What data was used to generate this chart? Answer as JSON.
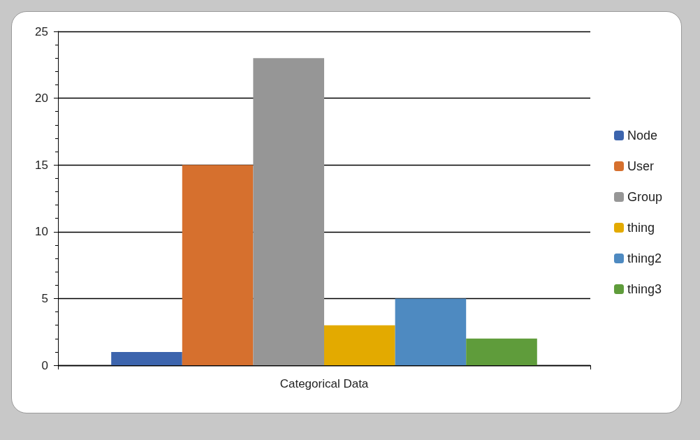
{
  "chart_data": {
    "type": "bar",
    "categories": [
      "Categorical Data"
    ],
    "series": [
      {
        "name": "Node",
        "color": "#3c64ad",
        "values": [
          1
        ]
      },
      {
        "name": "User",
        "color": "#d6702e",
        "values": [
          15
        ]
      },
      {
        "name": "Group",
        "color": "#969696",
        "values": [
          23
        ]
      },
      {
        "name": "thing",
        "color": "#e3aa00",
        "values": [
          3
        ]
      },
      {
        "name": "thing2",
        "color": "#4e8ac1",
        "values": [
          5
        ]
      },
      {
        "name": "thing3",
        "color": "#5f9c3b",
        "values": [
          2
        ]
      }
    ],
    "ylim": [
      0,
      25
    ],
    "yticks": [
      0,
      5,
      10,
      15,
      20,
      25
    ],
    "grid": "y",
    "legend": "right"
  }
}
